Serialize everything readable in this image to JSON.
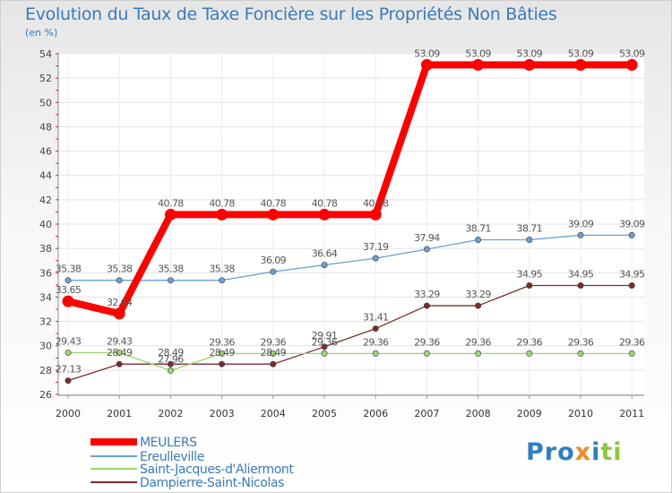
{
  "chart_data": {
    "type": "line",
    "title": "Evolution du Taux de Taxe Foncière sur les Propriétés Non Bâties",
    "unit_label": "(en %)",
    "x": [
      "2000",
      "2001",
      "2002",
      "2003",
      "2004",
      "2005",
      "2006",
      "2007",
      "2008",
      "2009",
      "2010",
      "2011"
    ],
    "ylim": [
      26,
      54
    ],
    "yticks": [
      26,
      28,
      30,
      32,
      34,
      36,
      38,
      40,
      42,
      44,
      46,
      48,
      50,
      52,
      54
    ],
    "grid": true,
    "legend_position": "bottom-left",
    "series": [
      {
        "name": "MEULERS",
        "color": "#ff0000",
        "values": [
          33.65,
          32.64,
          40.78,
          40.78,
          40.78,
          40.78,
          40.78,
          53.09,
          53.09,
          53.09,
          53.09,
          53.09
        ],
        "labels": [
          "33.65",
          "32.64",
          "40.78",
          "40.78",
          "40.78",
          "40.78",
          "40.78",
          "53.09",
          "53.09",
          "53.09",
          "53.09",
          "53.09"
        ]
      },
      {
        "name": "Ereulleville",
        "color": "#6a9fd4",
        "values": [
          35.38,
          35.38,
          35.38,
          35.38,
          36.09,
          36.64,
          37.19,
          37.94,
          38.71,
          38.71,
          39.09,
          39.09
        ],
        "labels": [
          "35.38",
          "35.38",
          "35.38",
          "35.38",
          "36.09",
          "36.64",
          "37.19",
          "37.94",
          "38.71",
          "38.71",
          "39.09",
          "39.09"
        ]
      },
      {
        "name": "Saint-Jacques-d'Aliermont",
        "color": "#9cd672",
        "values": [
          29.43,
          29.43,
          27.96,
          29.36,
          29.36,
          29.36,
          29.36,
          29.36,
          29.36,
          29.36,
          29.36,
          29.36
        ],
        "labels": [
          "29.43",
          "29.43",
          "27.96",
          "29.36",
          "29.36",
          "29.36",
          "29.36",
          "29.36",
          "29.36",
          "29.36",
          "29.36",
          "29.36"
        ]
      },
      {
        "name": "Dampierre-Saint-Nicolas",
        "color": "#7a2d2d",
        "values": [
          27.13,
          28.49,
          28.49,
          28.49,
          28.49,
          29.91,
          31.41,
          33.29,
          33.29,
          34.95,
          34.95,
          34.95
        ],
        "labels": [
          "27.13",
          "28.49",
          "28.49",
          "28.49",
          "28.49",
          "29.91",
          "31.41",
          "33.29",
          "33.29",
          "34.95",
          "34.95",
          "34.95"
        ]
      }
    ]
  },
  "logo": {
    "p1": "Pro",
    "p2": "x",
    "p3": "i",
    "p4": "ti"
  }
}
